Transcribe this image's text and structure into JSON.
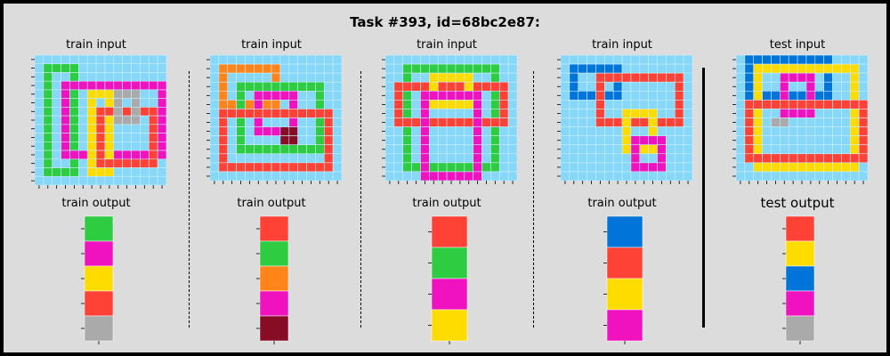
{
  "title": "Task #393, id=68bc2e87:",
  "palette": {
    "0": "#87d8f8",
    "1": "#0074d9",
    "2": "#ff4136",
    "3": "#2ecc40",
    "4": "#ffdc00",
    "5": "#aaaaaa",
    "6": "#f012be",
    "7": "#ff851b",
    "9": "#870c25"
  },
  "panels": [
    {
      "input_title": "train input",
      "output_title": "train output",
      "input": {
        "w": 15,
        "h": 15,
        "rects": [
          {
            "c": 3,
            "x1": 1,
            "y1": 1,
            "x2": 4,
            "y2": 13
          },
          {
            "c": 6,
            "x1": 3,
            "y1": 3,
            "x2": 14,
            "y2": 11
          },
          {
            "c": 4,
            "x1": 6,
            "y1": 4,
            "x2": 8,
            "y2": 13
          },
          {
            "c": 2,
            "x1": 7,
            "y1": 6,
            "x2": 13,
            "y2": 12
          },
          {
            "c": 5,
            "x1": 9,
            "y1": 4,
            "x2": 11,
            "y2": 7
          }
        ]
      },
      "output": [
        3,
        6,
        4,
        2,
        5
      ]
    },
    {
      "input_title": "train input",
      "output_title": "train output",
      "input": {
        "w": 15,
        "h": 14,
        "rects": [
          {
            "c": 7,
            "x1": 1,
            "y1": 1,
            "x2": 7,
            "y2": 5
          },
          {
            "c": 3,
            "x1": 3,
            "y1": 3,
            "x2": 12,
            "y2": 10
          },
          {
            "c": 6,
            "x1": 5,
            "y1": 4,
            "x2": 9,
            "y2": 8
          },
          {
            "c": 2,
            "x1": 1,
            "y1": 6,
            "x2": 13,
            "y2": 12
          },
          {
            "c": 9,
            "x1": 8,
            "y1": 8,
            "x2": 9,
            "y2": 9,
            "fill": true
          }
        ]
      },
      "output": [
        2,
        3,
        7,
        6,
        9
      ]
    },
    {
      "input_title": "train input",
      "output_title": "train output",
      "input": {
        "w": 15,
        "h": 14,
        "rects": [
          {
            "c": 3,
            "x1": 2,
            "y1": 1,
            "x2": 12,
            "y2": 12
          },
          {
            "c": 2,
            "x1": 1,
            "y1": 3,
            "x2": 13,
            "y2": 7
          },
          {
            "c": 4,
            "x1": 5,
            "y1": 2,
            "x2": 9,
            "y2": 5
          },
          {
            "c": 6,
            "x1": 4,
            "y1": 4,
            "x2": 10,
            "y2": 13
          }
        ]
      },
      "output": [
        2,
        3,
        6,
        4
      ]
    },
    {
      "input_title": "train input",
      "output_title": "train output",
      "input": {
        "w": 15,
        "h": 14,
        "rects": [
          {
            "c": 1,
            "x1": 1,
            "y1": 1,
            "x2": 6,
            "y2": 4
          },
          {
            "c": 2,
            "x1": 4,
            "y1": 2,
            "x2": 13,
            "y2": 7
          },
          {
            "c": 4,
            "x1": 7,
            "y1": 6,
            "x2": 10,
            "y2": 10
          },
          {
            "c": 6,
            "x1": 8,
            "y1": 9,
            "x2": 11,
            "y2": 12
          }
        ]
      },
      "output": [
        1,
        2,
        4,
        6
      ]
    },
    {
      "input_title": "test input",
      "output_title": "test output",
      "input": {
        "w": 15,
        "h": 14,
        "rects": [
          {
            "c": 1,
            "x1": 1,
            "y1": 0,
            "x2": 10,
            "y2": 4
          },
          {
            "c": 4,
            "x1": 2,
            "y1": 1,
            "x2": 13,
            "y2": 12
          },
          {
            "c": 6,
            "x1": 5,
            "y1": 2,
            "x2": 8,
            "y2": 6
          },
          {
            "c": 2,
            "x1": 1,
            "y1": 5,
            "x2": 14,
            "y2": 11
          },
          {
            "c": 5,
            "x1": 4,
            "y1": 7,
            "x2": 5,
            "y2": 7,
            "fill": true
          }
        ]
      },
      "output": [
        2,
        4,
        1,
        6,
        5
      ]
    }
  ]
}
